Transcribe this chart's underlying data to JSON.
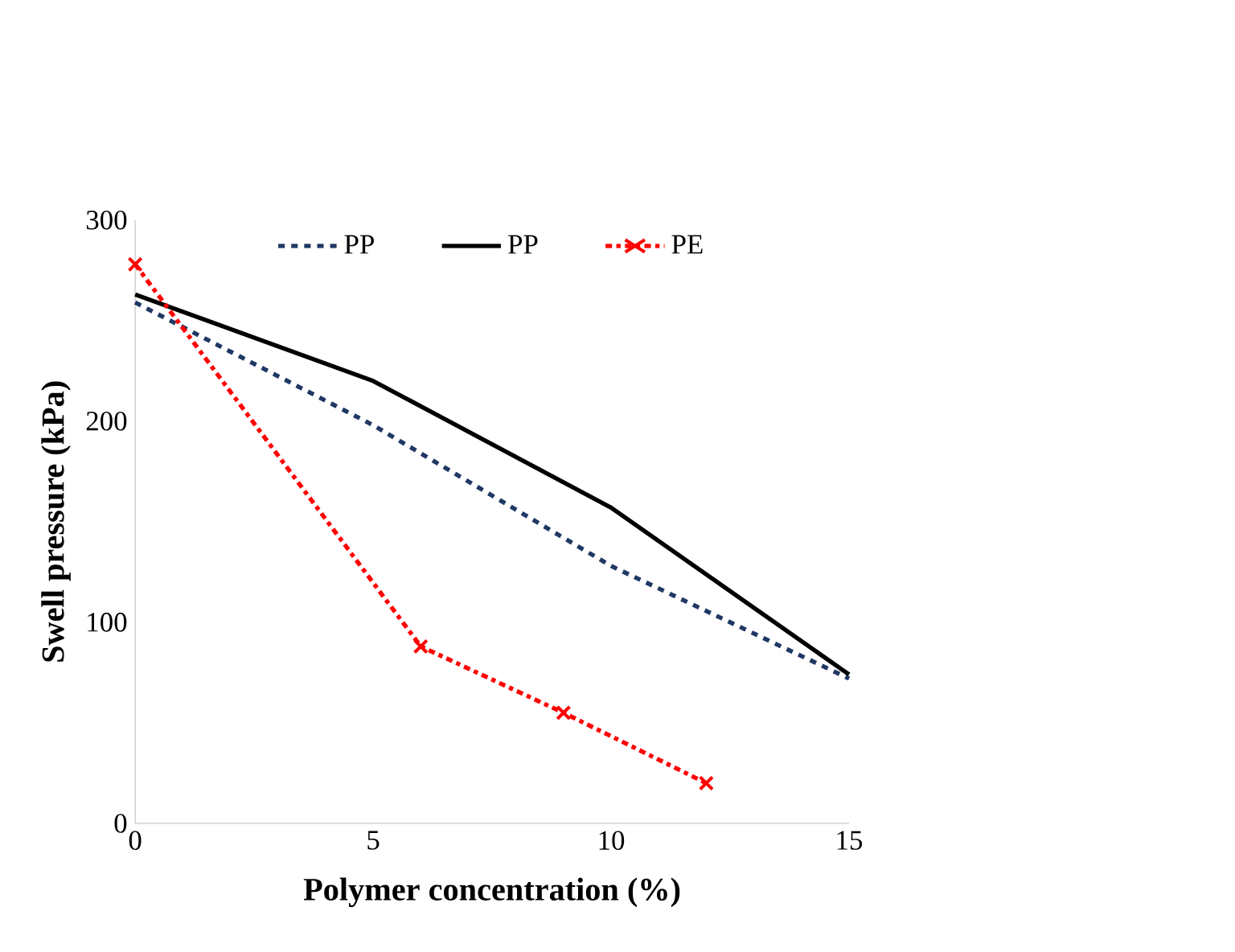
{
  "chart_data": {
    "type": "line",
    "xlabel": "Polymer concentration (%)",
    "ylabel": "Swell pressure (kPa)",
    "xlim": [
      0,
      15
    ],
    "ylim": [
      0,
      300
    ],
    "xticks": [
      0,
      5,
      10,
      15
    ],
    "yticks": [
      0,
      100,
      200,
      300
    ],
    "legend": "top",
    "grid": false,
    "series": [
      {
        "name": "PP",
        "color": "#1f3864",
        "line_style": "dashed",
        "marker": "none",
        "x": [
          0,
          5,
          10,
          15
        ],
        "values": [
          259,
          198,
          128,
          72
        ]
      },
      {
        "name": "PP",
        "color": "#000000",
        "line_style": "solid",
        "marker": "none",
        "x": [
          0,
          5,
          10,
          15
        ],
        "values": [
          263,
          220,
          157,
          74
        ]
      },
      {
        "name": "PE",
        "color": "#ff0000",
        "line_style": "dashdotted",
        "marker": "cross",
        "x": [
          0,
          6,
          9,
          12
        ],
        "values": [
          278,
          88,
          55,
          20
        ]
      }
    ]
  }
}
